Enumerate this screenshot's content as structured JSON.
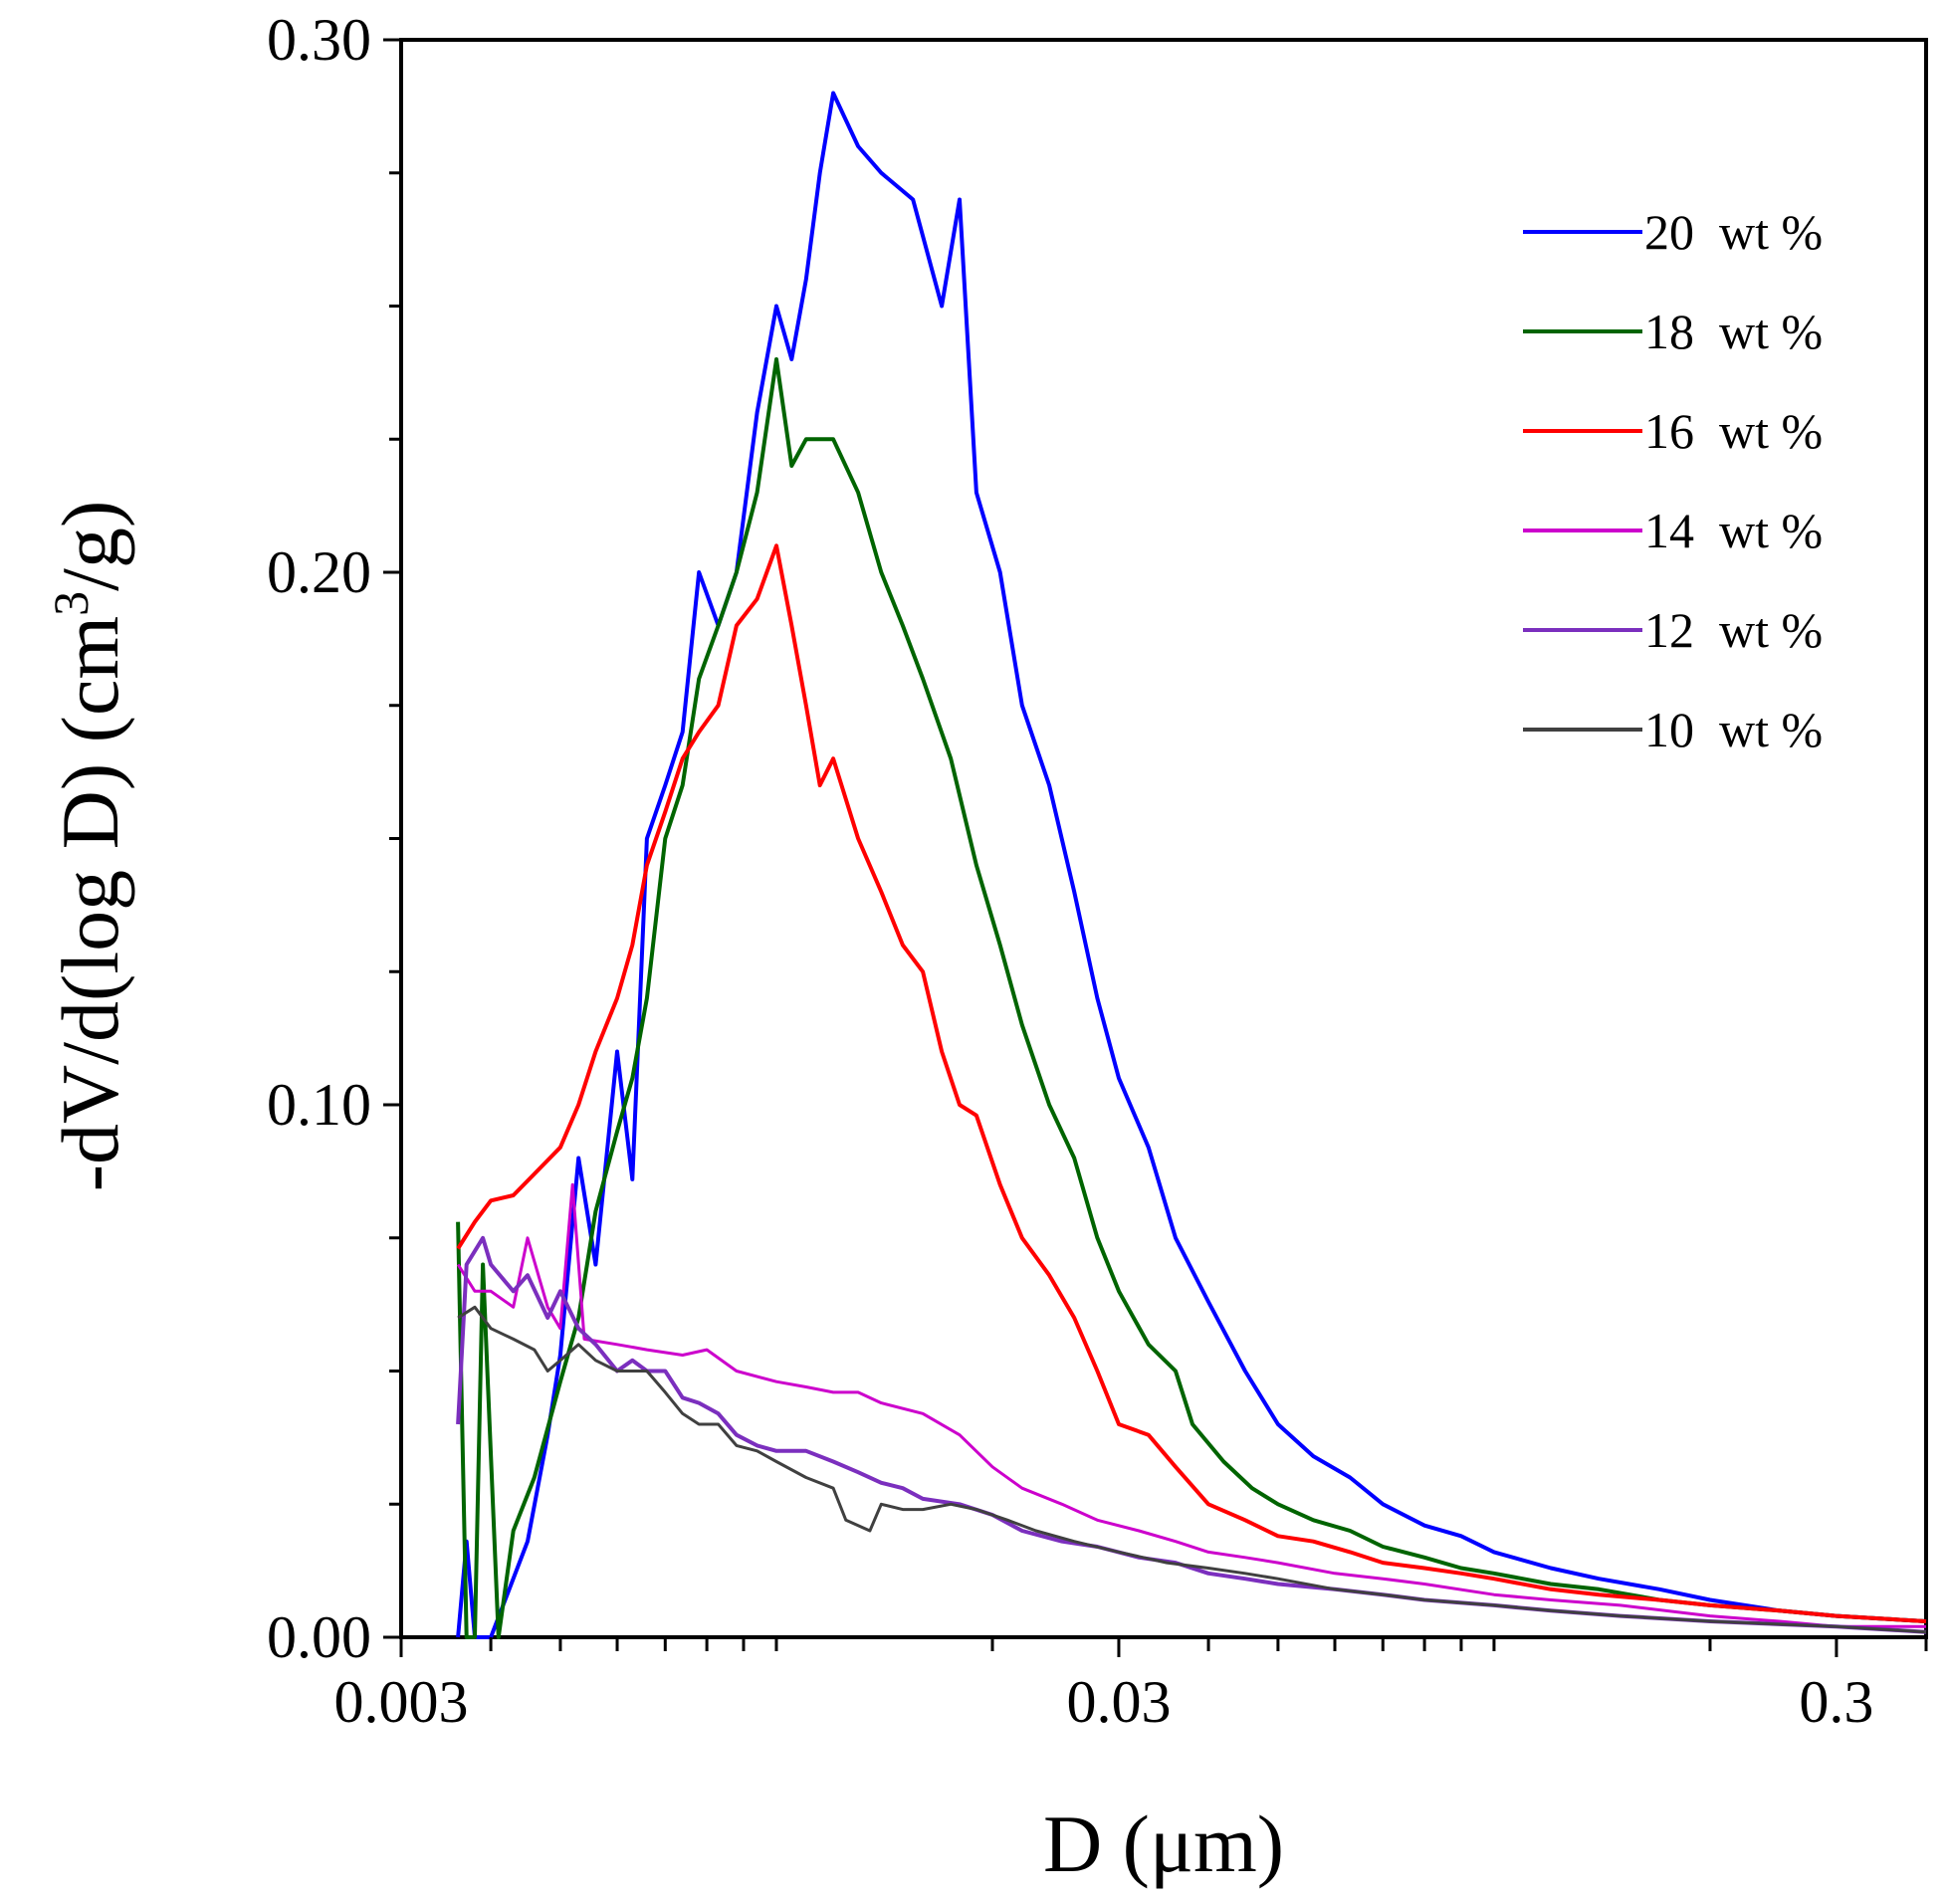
{
  "chart_data": {
    "type": "line",
    "x_scale": "log",
    "xlim": [
      0.003,
      0.4
    ],
    "ylim": [
      0.0,
      0.3
    ],
    "xlabel_main": "D (",
    "xlabel_unit": "μm",
    "xlabel_close": ")",
    "ylabel_main": "-dV/d(log D) (cm",
    "ylabel_sup": "3",
    "ylabel_end": "/g)",
    "x_ticks": [
      {
        "value": 0.003,
        "label": "0.003"
      },
      {
        "value": 0.03,
        "label": "0.03"
      },
      {
        "value": 0.3,
        "label": "0.3"
      }
    ],
    "y_ticks": [
      {
        "value": 0.0,
        "label": "0.00"
      },
      {
        "value": 0.1,
        "label": "0.10"
      },
      {
        "value": 0.2,
        "label": "0.20"
      },
      {
        "value": 0.3,
        "label": "0.30"
      }
    ],
    "legend_position": "top-right",
    "series": [
      {
        "name": "20  wt %",
        "color": "#0000ff",
        "width": 4,
        "points": [
          [
            0.0036,
            0.0
          ],
          [
            0.0037,
            0.018
          ],
          [
            0.0038,
            0.0
          ],
          [
            0.004,
            0.0
          ],
          [
            0.0045,
            0.018
          ],
          [
            0.0048,
            0.038
          ],
          [
            0.005,
            0.053
          ],
          [
            0.0053,
            0.09
          ],
          [
            0.0056,
            0.07
          ],
          [
            0.006,
            0.11
          ],
          [
            0.0063,
            0.086
          ],
          [
            0.0066,
            0.15
          ],
          [
            0.007,
            0.16
          ],
          [
            0.0074,
            0.17
          ],
          [
            0.0078,
            0.2
          ],
          [
            0.0083,
            0.19
          ],
          [
            0.0088,
            0.2
          ],
          [
            0.0094,
            0.23
          ],
          [
            0.01,
            0.25
          ],
          [
            0.0105,
            0.24
          ],
          [
            0.011,
            0.255
          ],
          [
            0.0115,
            0.275
          ],
          [
            0.012,
            0.29
          ],
          [
            0.013,
            0.28
          ],
          [
            0.014,
            0.275
          ],
          [
            0.0155,
            0.27
          ],
          [
            0.017,
            0.25
          ],
          [
            0.018,
            0.27
          ],
          [
            0.019,
            0.215
          ],
          [
            0.0205,
            0.2
          ],
          [
            0.022,
            0.175
          ],
          [
            0.024,
            0.16
          ],
          [
            0.026,
            0.14
          ],
          [
            0.028,
            0.12
          ],
          [
            0.03,
            0.105
          ],
          [
            0.033,
            0.092
          ],
          [
            0.036,
            0.075
          ],
          [
            0.04,
            0.063
          ],
          [
            0.045,
            0.05
          ],
          [
            0.05,
            0.04
          ],
          [
            0.056,
            0.034
          ],
          [
            0.063,
            0.03
          ],
          [
            0.07,
            0.025
          ],
          [
            0.08,
            0.021
          ],
          [
            0.09,
            0.019
          ],
          [
            0.1,
            0.016
          ],
          [
            0.12,
            0.013
          ],
          [
            0.14,
            0.011
          ],
          [
            0.17,
            0.009
          ],
          [
            0.2,
            0.007
          ],
          [
            0.25,
            0.005
          ],
          [
            0.3,
            0.004
          ],
          [
            0.4,
            0.003
          ]
        ]
      },
      {
        "name": "18  wt %",
        "color": "#006400",
        "width": 4,
        "points": [
          [
            0.0036,
            0.078
          ],
          [
            0.0037,
            0.0
          ],
          [
            0.0038,
            0.0
          ],
          [
            0.0039,
            0.07
          ],
          [
            0.0041,
            0.0
          ],
          [
            0.0043,
            0.02
          ],
          [
            0.0046,
            0.03
          ],
          [
            0.005,
            0.048
          ],
          [
            0.0053,
            0.06
          ],
          [
            0.0056,
            0.08
          ],
          [
            0.006,
            0.095
          ],
          [
            0.0063,
            0.105
          ],
          [
            0.0066,
            0.12
          ],
          [
            0.007,
            0.15
          ],
          [
            0.0074,
            0.16
          ],
          [
            0.0078,
            0.18
          ],
          [
            0.0083,
            0.19
          ],
          [
            0.0088,
            0.2
          ],
          [
            0.0094,
            0.215
          ],
          [
            0.01,
            0.24
          ],
          [
            0.0105,
            0.22
          ],
          [
            0.011,
            0.225
          ],
          [
            0.012,
            0.225
          ],
          [
            0.013,
            0.215
          ],
          [
            0.014,
            0.2
          ],
          [
            0.015,
            0.19
          ],
          [
            0.016,
            0.18
          ],
          [
            0.0175,
            0.165
          ],
          [
            0.019,
            0.145
          ],
          [
            0.0205,
            0.13
          ],
          [
            0.022,
            0.115
          ],
          [
            0.024,
            0.1
          ],
          [
            0.026,
            0.09
          ],
          [
            0.028,
            0.075
          ],
          [
            0.03,
            0.065
          ],
          [
            0.033,
            0.055
          ],
          [
            0.036,
            0.05
          ],
          [
            0.038,
            0.04
          ],
          [
            0.042,
            0.033
          ],
          [
            0.046,
            0.028
          ],
          [
            0.05,
            0.025
          ],
          [
            0.056,
            0.022
          ],
          [
            0.063,
            0.02
          ],
          [
            0.07,
            0.017
          ],
          [
            0.08,
            0.015
          ],
          [
            0.09,
            0.013
          ],
          [
            0.1,
            0.012
          ],
          [
            0.12,
            0.01
          ],
          [
            0.14,
            0.009
          ],
          [
            0.17,
            0.007
          ],
          [
            0.2,
            0.006
          ],
          [
            0.25,
            0.005
          ],
          [
            0.3,
            0.004
          ],
          [
            0.4,
            0.003
          ]
        ]
      },
      {
        "name": "16  wt %",
        "color": "#ff0000",
        "width": 4,
        "points": [
          [
            0.0036,
            0.073
          ],
          [
            0.0038,
            0.078
          ],
          [
            0.004,
            0.082
          ],
          [
            0.0043,
            0.083
          ],
          [
            0.0046,
            0.087
          ],
          [
            0.005,
            0.092
          ],
          [
            0.0053,
            0.1
          ],
          [
            0.0056,
            0.11
          ],
          [
            0.006,
            0.12
          ],
          [
            0.0063,
            0.13
          ],
          [
            0.0066,
            0.145
          ],
          [
            0.007,
            0.155
          ],
          [
            0.0074,
            0.165
          ],
          [
            0.0078,
            0.17
          ],
          [
            0.0083,
            0.175
          ],
          [
            0.0088,
            0.19
          ],
          [
            0.0094,
            0.195
          ],
          [
            0.01,
            0.205
          ],
          [
            0.0105,
            0.19
          ],
          [
            0.011,
            0.175
          ],
          [
            0.0115,
            0.16
          ],
          [
            0.012,
            0.165
          ],
          [
            0.013,
            0.15
          ],
          [
            0.014,
            0.14
          ],
          [
            0.015,
            0.13
          ],
          [
            0.016,
            0.125
          ],
          [
            0.017,
            0.11
          ],
          [
            0.018,
            0.1
          ],
          [
            0.019,
            0.098
          ],
          [
            0.0205,
            0.085
          ],
          [
            0.022,
            0.075
          ],
          [
            0.024,
            0.068
          ],
          [
            0.026,
            0.06
          ],
          [
            0.028,
            0.05
          ],
          [
            0.03,
            0.04
          ],
          [
            0.033,
            0.038
          ],
          [
            0.036,
            0.032
          ],
          [
            0.04,
            0.025
          ],
          [
            0.045,
            0.022
          ],
          [
            0.05,
            0.019
          ],
          [
            0.056,
            0.018
          ],
          [
            0.063,
            0.016
          ],
          [
            0.07,
            0.014
          ],
          [
            0.08,
            0.013
          ],
          [
            0.09,
            0.012
          ],
          [
            0.1,
            0.011
          ],
          [
            0.12,
            0.009
          ],
          [
            0.14,
            0.008
          ],
          [
            0.17,
            0.007
          ],
          [
            0.2,
            0.006
          ],
          [
            0.25,
            0.005
          ],
          [
            0.3,
            0.004
          ],
          [
            0.4,
            0.003
          ]
        ]
      },
      {
        "name": "14  wt %",
        "color": "#cc00cc",
        "width": 3,
        "points": [
          [
            0.0036,
            0.07
          ],
          [
            0.0038,
            0.065
          ],
          [
            0.004,
            0.065
          ],
          [
            0.0043,
            0.062
          ],
          [
            0.0045,
            0.075
          ],
          [
            0.0048,
            0.062
          ],
          [
            0.005,
            0.058
          ],
          [
            0.0052,
            0.085
          ],
          [
            0.0054,
            0.056
          ],
          [
            0.006,
            0.055
          ],
          [
            0.0066,
            0.054
          ],
          [
            0.0074,
            0.053
          ],
          [
            0.008,
            0.054
          ],
          [
            0.0088,
            0.05
          ],
          [
            0.01,
            0.048
          ],
          [
            0.011,
            0.047
          ],
          [
            0.012,
            0.046
          ],
          [
            0.013,
            0.046
          ],
          [
            0.014,
            0.044
          ],
          [
            0.016,
            0.042
          ],
          [
            0.018,
            0.038
          ],
          [
            0.02,
            0.032
          ],
          [
            0.022,
            0.028
          ],
          [
            0.025,
            0.025
          ],
          [
            0.028,
            0.022
          ],
          [
            0.032,
            0.02
          ],
          [
            0.036,
            0.018
          ],
          [
            0.04,
            0.016
          ],
          [
            0.045,
            0.015
          ],
          [
            0.05,
            0.014
          ],
          [
            0.06,
            0.012
          ],
          [
            0.07,
            0.011
          ],
          [
            0.08,
            0.01
          ],
          [
            0.1,
            0.008
          ],
          [
            0.12,
            0.007
          ],
          [
            0.15,
            0.006
          ],
          [
            0.2,
            0.004
          ],
          [
            0.25,
            0.003
          ],
          [
            0.3,
            0.002
          ],
          [
            0.4,
            0.002
          ]
        ]
      },
      {
        "name": "12  wt %",
        "color": "#7b2fbe",
        "width": 4,
        "points": [
          [
            0.0036,
            0.04
          ],
          [
            0.0037,
            0.07
          ],
          [
            0.0039,
            0.075
          ],
          [
            0.004,
            0.07
          ],
          [
            0.0043,
            0.065
          ],
          [
            0.0045,
            0.068
          ],
          [
            0.0048,
            0.06
          ],
          [
            0.005,
            0.065
          ],
          [
            0.0053,
            0.058
          ],
          [
            0.0056,
            0.055
          ],
          [
            0.006,
            0.05
          ],
          [
            0.0063,
            0.052
          ],
          [
            0.0066,
            0.05
          ],
          [
            0.007,
            0.05
          ],
          [
            0.0074,
            0.045
          ],
          [
            0.0078,
            0.044
          ],
          [
            0.0083,
            0.042
          ],
          [
            0.0088,
            0.038
          ],
          [
            0.0094,
            0.036
          ],
          [
            0.01,
            0.035
          ],
          [
            0.011,
            0.035
          ],
          [
            0.012,
            0.033
          ],
          [
            0.013,
            0.031
          ],
          [
            0.014,
            0.029
          ],
          [
            0.015,
            0.028
          ],
          [
            0.016,
            0.026
          ],
          [
            0.018,
            0.025
          ],
          [
            0.02,
            0.023
          ],
          [
            0.022,
            0.02
          ],
          [
            0.025,
            0.018
          ],
          [
            0.028,
            0.017
          ],
          [
            0.032,
            0.015
          ],
          [
            0.036,
            0.014
          ],
          [
            0.04,
            0.012
          ],
          [
            0.045,
            0.011
          ],
          [
            0.05,
            0.01
          ],
          [
            0.06,
            0.009
          ],
          [
            0.07,
            0.008
          ],
          [
            0.08,
            0.007
          ],
          [
            0.1,
            0.006
          ],
          [
            0.12,
            0.005
          ],
          [
            0.15,
            0.004
          ],
          [
            0.2,
            0.003
          ],
          [
            0.3,
            0.002
          ],
          [
            0.4,
            0.001
          ]
        ]
      },
      {
        "name": "10  wt %",
        "color": "#404040",
        "width": 3,
        "points": [
          [
            0.0036,
            0.06
          ],
          [
            0.0038,
            0.062
          ],
          [
            0.004,
            0.058
          ],
          [
            0.0043,
            0.056
          ],
          [
            0.0046,
            0.054
          ],
          [
            0.0048,
            0.05
          ],
          [
            0.005,
            0.052
          ],
          [
            0.0053,
            0.055
          ],
          [
            0.0056,
            0.052
          ],
          [
            0.006,
            0.05
          ],
          [
            0.0063,
            0.05
          ],
          [
            0.0066,
            0.05
          ],
          [
            0.007,
            0.046
          ],
          [
            0.0074,
            0.042
          ],
          [
            0.0078,
            0.04
          ],
          [
            0.0083,
            0.04
          ],
          [
            0.0088,
            0.036
          ],
          [
            0.0094,
            0.035
          ],
          [
            0.01,
            0.033
          ],
          [
            0.011,
            0.03
          ],
          [
            0.012,
            0.028
          ],
          [
            0.0125,
            0.022
          ],
          [
            0.0135,
            0.02
          ],
          [
            0.014,
            0.025
          ],
          [
            0.015,
            0.024
          ],
          [
            0.016,
            0.024
          ],
          [
            0.0175,
            0.025
          ],
          [
            0.019,
            0.024
          ],
          [
            0.021,
            0.022
          ],
          [
            0.023,
            0.02
          ],
          [
            0.026,
            0.018
          ],
          [
            0.03,
            0.016
          ],
          [
            0.035,
            0.014
          ],
          [
            0.04,
            0.013
          ],
          [
            0.045,
            0.012
          ],
          [
            0.05,
            0.011
          ],
          [
            0.06,
            0.009
          ],
          [
            0.07,
            0.008
          ],
          [
            0.08,
            0.007
          ],
          [
            0.1,
            0.006
          ],
          [
            0.12,
            0.005
          ],
          [
            0.15,
            0.004
          ],
          [
            0.2,
            0.003
          ],
          [
            0.3,
            0.002
          ],
          [
            0.4,
            0.001
          ]
        ]
      }
    ]
  }
}
